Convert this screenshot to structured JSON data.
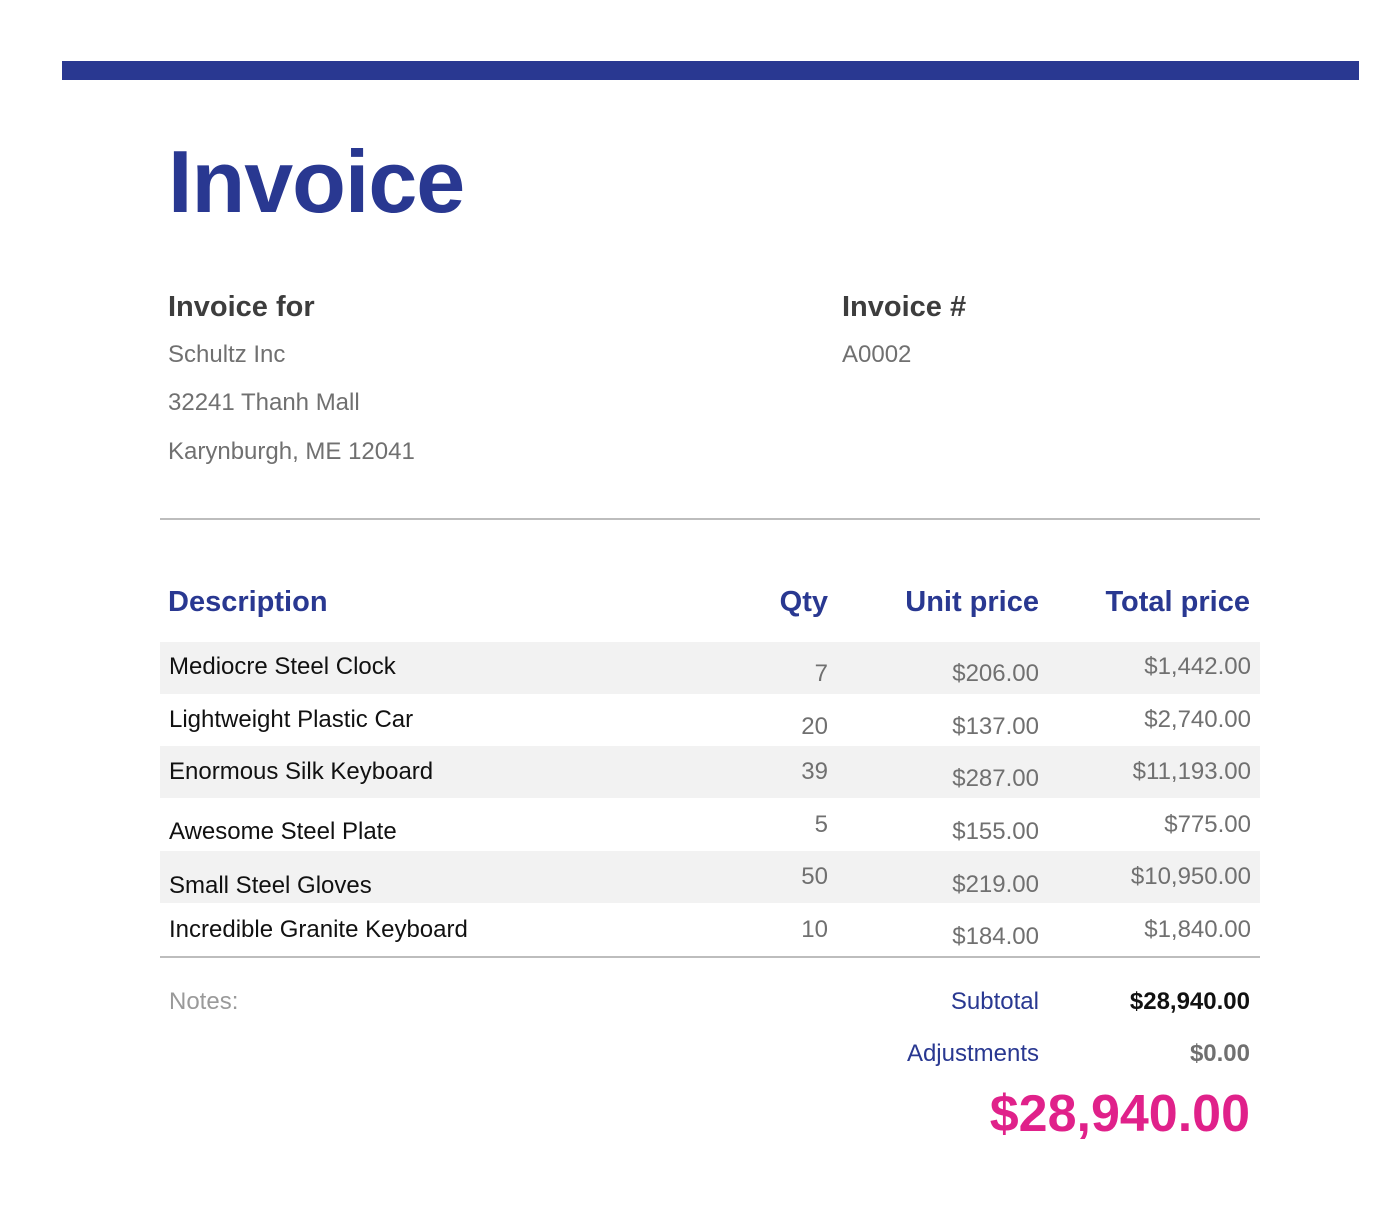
{
  "invoice": {
    "title": "Invoice",
    "bill_to": {
      "heading": "Invoice for",
      "company": "Schultz Inc",
      "street": "32241 Thanh Mall",
      "city_line": "Karynburgh, ME 12041"
    },
    "number_block": {
      "heading": "Invoice #",
      "number": "A0002"
    },
    "table": {
      "headers": {
        "description": "Description",
        "qty": "Qty",
        "unit_price": "Unit price",
        "total_price": "Total price"
      },
      "rows": [
        {
          "description": "Mediocre Steel Clock",
          "qty": "7",
          "unit_price": "$206.00",
          "total_price": "$1,442.00"
        },
        {
          "description": "Lightweight Plastic Car",
          "qty": "20",
          "unit_price": "$137.00",
          "total_price": "$2,740.00"
        },
        {
          "description": "Enormous Silk Keyboard",
          "qty": "39",
          "unit_price": "$287.00",
          "total_price": "$11,193.00"
        },
        {
          "description": "Awesome Steel Plate",
          "qty": "5",
          "unit_price": "$155.00",
          "total_price": "$775.00"
        },
        {
          "description": "Small Steel Gloves",
          "qty": "50",
          "unit_price": "$219.00",
          "total_price": "$10,950.00"
        },
        {
          "description": "Incredible Granite Keyboard",
          "qty": "10",
          "unit_price": "$184.00",
          "total_price": "$1,840.00"
        }
      ]
    },
    "notes_label": "Notes:",
    "summary": {
      "subtotal_label": "Subtotal",
      "subtotal_value": "$28,940.00",
      "adjustments_label": "Adjustments",
      "adjustments_value": "$0.00",
      "grand_total": "$28,940.00"
    }
  },
  "colors": {
    "brand_navy": "#293891",
    "total_magenta": "#e0218a",
    "row_shade": "#f2f2f2"
  }
}
